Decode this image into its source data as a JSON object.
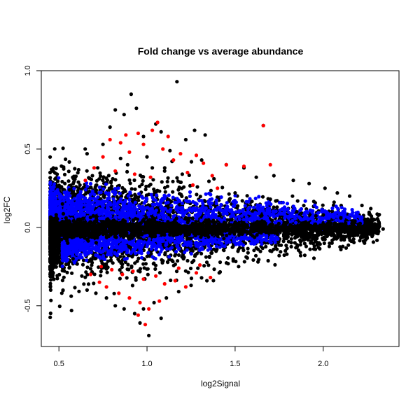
{
  "chart_data": {
    "type": "scatter",
    "title": "Fold change vs average abundance",
    "xlabel": "log2Signal",
    "ylabel": "log2FC",
    "xlim": [
      0.4,
      2.43
    ],
    "ylim": [
      -0.76,
      1.0
    ],
    "xticks": [
      0.5,
      1.0,
      1.5,
      2.0
    ],
    "xtick_labels": [
      "0.5",
      "1.0",
      "1.5",
      "2.0"
    ],
    "yticks": [
      -0.5,
      0.0,
      0.5,
      1.0
    ],
    "ytick_labels": [
      "-0.5",
      "0.0",
      "0.5",
      "1.0"
    ],
    "grid": false,
    "legend": "none",
    "reference_line": {
      "y": 1.0,
      "color": "#00008b"
    },
    "colors": {
      "black": "#000000",
      "blue": "#0000ff",
      "red": "#ff0000"
    },
    "series": [
      {
        "color": "black",
        "points": [
          [
            0.91,
            0.85
          ],
          [
            1.17,
            0.93
          ],
          [
            0.82,
            0.75
          ],
          [
            0.94,
            0.76
          ],
          [
            0.87,
            0.72
          ],
          [
            0.79,
            0.64
          ],
          [
            1.66,
            0.65
          ],
          [
            1.33,
            0.59
          ],
          [
            1.05,
            0.66
          ],
          [
            1.27,
            0.62
          ],
          [
            0.75,
            0.53
          ],
          [
            1.08,
            0.61
          ],
          [
            0.98,
            0.58
          ],
          [
            1.22,
            0.56
          ],
          [
            0.66,
            0.47
          ],
          [
            1.13,
            0.49
          ],
          [
            1.31,
            0.43
          ],
          [
            1.45,
            0.4
          ],
          [
            1.55,
            0.38
          ],
          [
            1.72,
            0.33
          ],
          [
            1.62,
            0.32
          ],
          [
            1.83,
            0.3
          ],
          [
            1.92,
            0.28
          ],
          [
            2.01,
            0.25
          ],
          [
            2.08,
            0.22
          ],
          [
            2.15,
            0.2
          ],
          [
            2.22,
            0.14
          ],
          [
            2.27,
            0.12
          ],
          [
            2.18,
            0.04
          ],
          [
            2.34,
            -0.01
          ],
          [
            2.29,
            -0.03
          ],
          [
            2.12,
            -0.06
          ],
          [
            2.24,
            -0.08
          ],
          [
            2.05,
            -0.1
          ],
          [
            1.95,
            -0.12
          ],
          [
            1.87,
            -0.16
          ],
          [
            1.75,
            -0.18
          ],
          [
            1.63,
            -0.22
          ],
          [
            1.52,
            -0.25
          ],
          [
            1.41,
            -0.29
          ],
          [
            1.34,
            -0.34
          ],
          [
            1.25,
            -0.37
          ],
          [
            1.18,
            -0.41
          ],
          [
            1.11,
            -0.45
          ],
          [
            1.04,
            -0.48
          ],
          [
            0.98,
            -0.52
          ],
          [
            0.93,
            -0.55
          ],
          [
            0.87,
            -0.52
          ],
          [
            0.82,
            -0.5
          ],
          [
            0.77,
            -0.45
          ],
          [
            0.71,
            -0.42
          ],
          [
            0.66,
            -0.4
          ],
          [
            0.63,
            -0.31
          ],
          [
            1.01,
            -0.69
          ],
          [
            1.08,
            -0.58
          ],
          [
            0.96,
            -0.61
          ],
          [
            0.58,
            -0.2
          ],
          [
            0.55,
            -0.1
          ],
          [
            0.52,
            0.15
          ],
          [
            0.56,
            0.24
          ],
          [
            0.69,
            0.33
          ],
          [
            0.72,
            0.38
          ],
          [
            0.85,
            0.44
          ],
          [
            0.89,
            0.4
          ],
          [
            1.0,
            0.45
          ],
          [
            1.03,
            0.38
          ],
          [
            1.1,
            0.36
          ],
          [
            1.2,
            0.34
          ],
          [
            1.38,
            0.31
          ],
          [
            1.5,
            0.22
          ],
          [
            1.7,
            0.18
          ],
          [
            1.85,
            0.1
          ],
          [
            2.0,
            0.08
          ],
          [
            2.1,
            0.06
          ],
          [
            2.2,
            0.02
          ],
          [
            1.8,
            -0.06
          ],
          [
            1.9,
            -0.04
          ]
        ]
      },
      {
        "color": "red",
        "points": [
          [
            1.06,
            0.67
          ],
          [
            1.66,
            0.65
          ],
          [
            1.03,
            0.62
          ],
          [
            0.95,
            0.6
          ],
          [
            1.12,
            0.58
          ],
          [
            0.88,
            0.59
          ],
          [
            0.79,
            0.56
          ],
          [
            0.85,
            0.54
          ],
          [
            0.98,
            0.53
          ],
          [
            1.09,
            0.5
          ],
          [
            1.19,
            0.47
          ],
          [
            1.28,
            0.46
          ],
          [
            0.9,
            0.48
          ],
          [
            0.75,
            0.45
          ],
          [
            1.15,
            0.43
          ],
          [
            1.32,
            0.41
          ],
          [
            1.45,
            0.4
          ],
          [
            1.55,
            0.39
          ],
          [
            1.7,
            0.4
          ],
          [
            0.7,
            0.38
          ],
          [
            0.82,
            0.36
          ],
          [
            1.23,
            0.35
          ],
          [
            1.37,
            0.33
          ],
          [
            0.65,
            0.3
          ],
          [
            1.02,
            0.32
          ],
          [
            1.4,
            0.25
          ],
          [
            1.26,
            0.27
          ],
          [
            0.93,
            0.34
          ],
          [
            0.74,
            -0.25
          ],
          [
            0.8,
            -0.27
          ],
          [
            0.86,
            -0.3
          ],
          [
            0.92,
            -0.28
          ],
          [
            0.98,
            -0.33
          ],
          [
            1.05,
            -0.31
          ],
          [
            1.1,
            -0.36
          ],
          [
            1.16,
            -0.34
          ],
          [
            1.22,
            -0.38
          ],
          [
            1.28,
            -0.29
          ],
          [
            1.36,
            -0.32
          ],
          [
            0.68,
            -0.3
          ],
          [
            0.77,
            -0.38
          ],
          [
            0.84,
            -0.42
          ],
          [
            0.9,
            -0.45
          ],
          [
            0.96,
            -0.48
          ],
          [
            1.01,
            -0.52
          ],
          [
            0.99,
            -0.62
          ],
          [
            0.95,
            -0.56
          ],
          [
            1.07,
            -0.47
          ],
          [
            0.73,
            -0.35
          ],
          [
            1.18,
            -0.26
          ],
          [
            1.3,
            -0.24
          ]
        ]
      }
    ],
    "bands": [
      {
        "color": "black",
        "count": 4200,
        "x_range": [
          0.45,
          2.32
        ],
        "y_center": 0.0,
        "y_spread_at_low": 0.3,
        "y_spread_at_high": 0.07
      },
      {
        "color": "blue",
        "count": 1300,
        "x_range": [
          0.45,
          2.22
        ],
        "y_center": 0.12,
        "y_spread_at_low": 0.13,
        "y_spread_at_high": 0.05
      },
      {
        "color": "blue",
        "count": 850,
        "x_range": [
          0.52,
          1.75
        ],
        "y_center": -0.12,
        "y_spread_at_low": 0.09,
        "y_spread_at_high": 0.04
      },
      {
        "color": "black",
        "count": 1900,
        "x_range": [
          0.45,
          2.32
        ],
        "y_center": -0.01,
        "y_spread_at_low": 0.05,
        "y_spread_at_high": 0.03
      }
    ]
  }
}
